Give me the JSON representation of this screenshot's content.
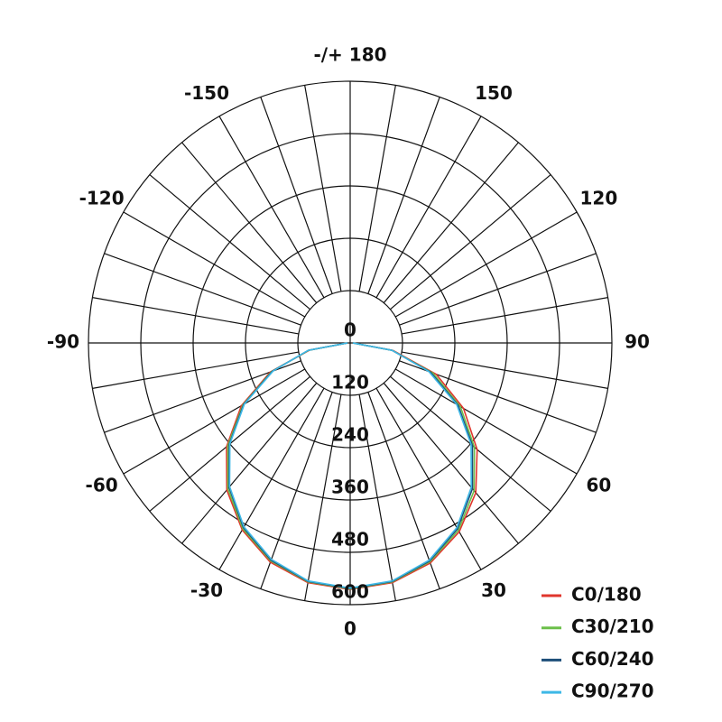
{
  "chart_data": {
    "type": "polar",
    "theta": [
      -90,
      -80,
      -70,
      -60,
      -50,
      -40,
      -30,
      -20,
      -10,
      0,
      10,
      20,
      30,
      40,
      50,
      60,
      70,
      80,
      90
    ],
    "series": [
      {
        "name": "C0/180",
        "color": "#e0362c",
        "values": [
          6,
          95,
          195,
          288,
          370,
          440,
          495,
          535,
          558,
          565,
          558,
          537,
          500,
          448,
          380,
          300,
          210,
          100,
          6
        ]
      },
      {
        "name": "C30/210",
        "color": "#6cbf4a",
        "values": [
          6,
          96,
          192,
          284,
          366,
          436,
          492,
          532,
          556,
          564,
          556,
          534,
          496,
          442,
          372,
          292,
          202,
          98,
          6
        ]
      },
      {
        "name": "C60/240",
        "color": "#1d4e79",
        "values": [
          6,
          97,
          190,
          282,
          362,
          432,
          489,
          530,
          555,
          563,
          555,
          532,
          492,
          436,
          366,
          286,
          196,
          97,
          6
        ]
      },
      {
        "name": "C90/270",
        "color": "#3db8e6",
        "values": [
          6,
          98,
          188,
          280,
          360,
          430,
          487,
          528,
          554,
          562,
          554,
          530,
          489,
          432,
          362,
          282,
          192,
          98,
          6
        ]
      }
    ],
    "rlim": [
      0,
      600
    ],
    "rticks": [
      0,
      120,
      240,
      360,
      480,
      600
    ],
    "thetaticks": [
      0,
      30,
      60,
      90,
      120,
      150,
      {
        "value": 180,
        "label": "-/+ 180"
      },
      -150,
      -120,
      -90,
      -60,
      -30
    ],
    "legend": "lower right"
  }
}
